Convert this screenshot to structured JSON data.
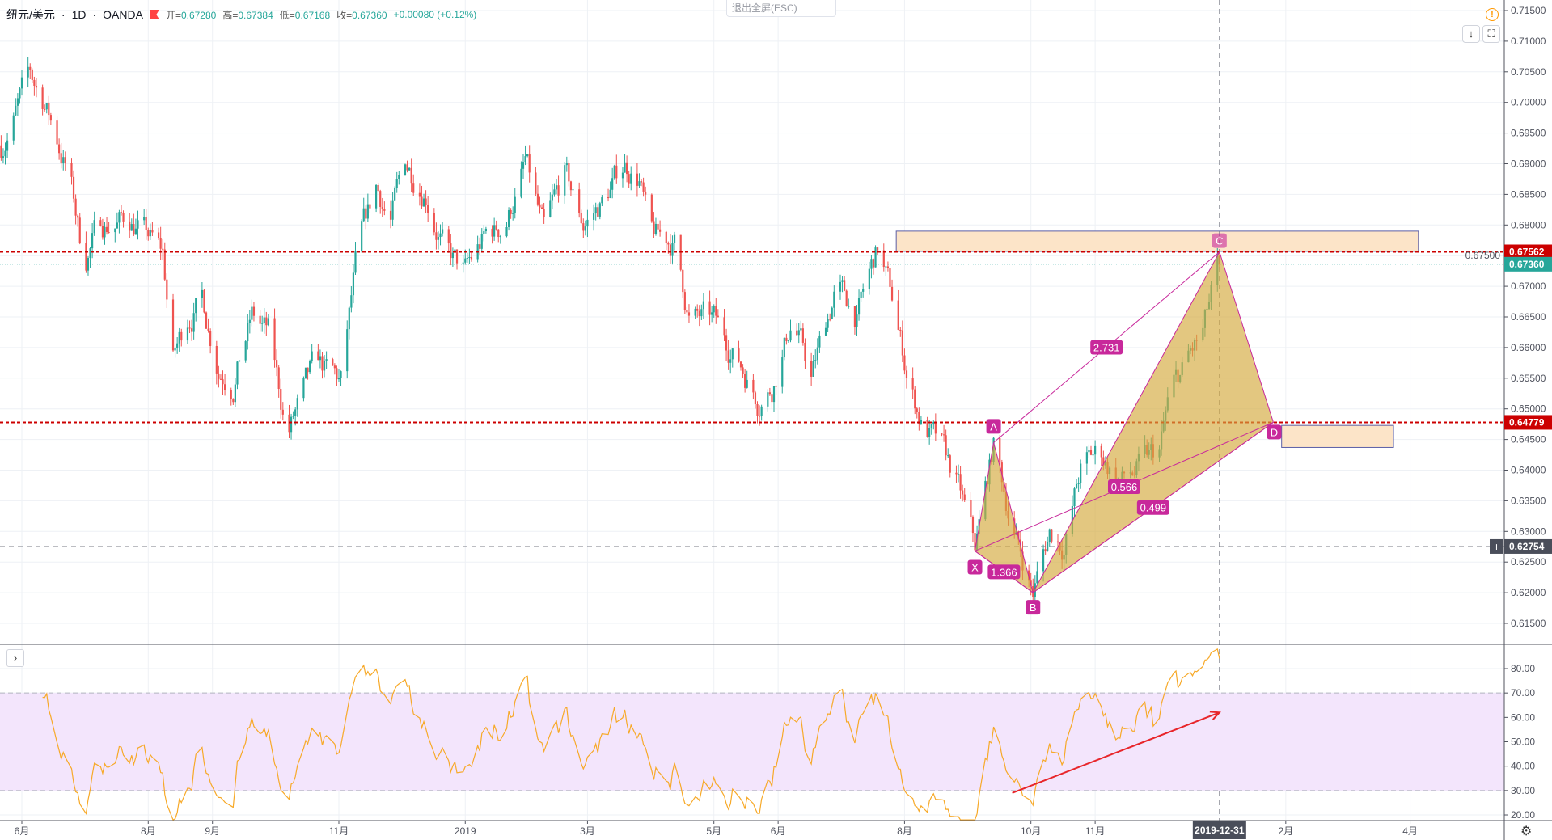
{
  "header": {
    "symbol": "纽元/美元",
    "interval": "1D",
    "exchange": "OANDA",
    "open_label": "开=",
    "open": "0.67280",
    "high_label": "高=",
    "high": "0.67384",
    "low_label": "低=",
    "low": "0.67168",
    "close_label": "收=",
    "close": "0.67360",
    "change": "+0.00080 (+0.12%)",
    "sep": "·"
  },
  "toolbar": {
    "exit_fullscreen": "退出全屏(ESC)",
    "info_icon": "!",
    "download_icon": "↓",
    "fullscreen_icon": "⛶",
    "collapse_icon": "›",
    "settings_icon": "⚙"
  },
  "colors": {
    "up": "#26a69a",
    "down": "#ef5350",
    "level": "#cc0000",
    "pattern_fill": "#d4a93c",
    "pattern_line": "#c8289b",
    "label_bg": "#c8289b",
    "box_fill": "#fce4c8",
    "box_border": "#5b5ea6",
    "rsi_line": "#f7a928",
    "rsi_band": "#f3e5fc",
    "arrow": "#e8252a"
  },
  "chart_data": {
    "type": "candlestick",
    "price_ticks": [
      "0.71500",
      "0.71000",
      "0.70500",
      "0.70000",
      "0.69500",
      "0.69000",
      "0.68500",
      "0.68000",
      "0.67500",
      "0.67000",
      "0.66500",
      "0.66000",
      "0.65500",
      "0.65000",
      "0.64500",
      "0.64000",
      "0.63500",
      "0.63000",
      "0.62500",
      "0.62000",
      "0.61500"
    ],
    "price_range": [
      0.6115,
      0.7165
    ],
    "time_ticks": [
      {
        "label": "6月",
        "date": "2018-06-01"
      },
      {
        "label": "8月",
        "date": "2018-08-01"
      },
      {
        "label": "9月",
        "date": "2018-09-01"
      },
      {
        "label": "11月",
        "date": "2018-11-01"
      },
      {
        "label": "2019",
        "date": "2019-01-01"
      },
      {
        "label": "3月",
        "date": "2019-03-01"
      },
      {
        "label": "5月",
        "date": "2019-05-01"
      },
      {
        "label": "6月",
        "date": "2019-06-01"
      },
      {
        "label": "8月",
        "date": "2019-08-01"
      },
      {
        "label": "10月",
        "date": "2019-10-01"
      },
      {
        "label": "11月",
        "date": "2019-11-01"
      },
      {
        "label": "2月",
        "date": "2020-02-01"
      },
      {
        "label": "4月",
        "date": "2020-04-01"
      }
    ],
    "crosshair": {
      "date": "2019-12-31",
      "date_label": "2019-12-31",
      "price": "0.62754"
    },
    "levels": [
      {
        "price": 0.67562,
        "label": "0.67562",
        "style": "red-dotted"
      },
      {
        "price": 0.64779,
        "label": "0.64779",
        "style": "red-dotted"
      }
    ],
    "last_price": {
      "price": 0.6736,
      "label": "0.67360"
    },
    "price_path": [
      [
        "2018-05-22",
        0.693
      ],
      [
        "2018-06-05",
        0.704
      ],
      [
        "2018-06-12",
        0.7
      ],
      [
        "2018-06-24",
        0.688
      ],
      [
        "2018-07-01",
        0.674
      ],
      [
        "2018-07-08",
        0.68
      ],
      [
        "2018-07-23",
        0.681
      ],
      [
        "2018-08-01",
        0.678
      ],
      [
        "2018-08-08",
        0.675
      ],
      [
        "2018-08-13",
        0.658
      ],
      [
        "2018-08-20",
        0.665
      ],
      [
        "2018-08-27",
        0.668
      ],
      [
        "2018-09-04",
        0.657
      ],
      [
        "2018-09-11",
        0.655
      ],
      [
        "2018-09-20",
        0.665
      ],
      [
        "2018-09-28",
        0.662
      ],
      [
        "2018-10-07",
        0.646
      ],
      [
        "2018-10-12",
        0.65
      ],
      [
        "2018-10-21",
        0.657
      ],
      [
        "2018-11-02",
        0.654
      ],
      [
        "2018-11-10",
        0.675
      ],
      [
        "2018-11-19",
        0.686
      ],
      [
        "2018-11-26",
        0.681
      ],
      [
        "2018-12-03",
        0.69
      ],
      [
        "2018-12-13",
        0.686
      ],
      [
        "2018-12-23",
        0.675
      ],
      [
        "2019-01-01",
        0.672
      ],
      [
        "2019-01-11",
        0.678
      ],
      [
        "2019-01-20",
        0.68
      ],
      [
        "2019-01-30",
        0.69
      ],
      [
        "2019-02-08",
        0.678
      ],
      [
        "2019-02-18",
        0.688
      ],
      [
        "2019-02-27",
        0.68
      ],
      [
        "2019-03-09",
        0.684
      ],
      [
        "2019-03-19",
        0.69
      ],
      [
        "2019-03-26",
        0.688
      ],
      [
        "2019-03-31",
        0.678
      ],
      [
        "2019-04-12",
        0.677
      ],
      [
        "2019-04-19",
        0.665
      ],
      [
        "2019-05-01",
        0.664
      ],
      [
        "2019-05-13",
        0.658
      ],
      [
        "2019-05-22",
        0.652
      ],
      [
        "2019-05-29",
        0.654
      ],
      [
        "2019-06-08",
        0.665
      ],
      [
        "2019-06-17",
        0.655
      ],
      [
        "2019-06-29",
        0.67
      ],
      [
        "2019-07-09",
        0.665
      ],
      [
        "2019-07-19",
        0.676
      ],
      [
        "2019-07-26",
        0.668
      ],
      [
        "2019-08-02",
        0.656
      ],
      [
        "2019-08-09",
        0.648
      ],
      [
        "2019-08-19",
        0.643
      ],
      [
        "2019-08-26",
        0.638
      ],
      [
        "2019-09-04",
        0.627
      ],
      [
        "2019-09-13",
        0.644
      ],
      [
        "2019-09-23",
        0.63
      ],
      [
        "2019-10-02",
        0.62
      ],
      [
        "2019-10-10",
        0.63
      ],
      [
        "2019-10-17",
        0.628
      ],
      [
        "2019-10-25",
        0.64
      ],
      [
        "2019-11-03",
        0.643
      ],
      [
        "2019-11-13",
        0.638
      ],
      [
        "2019-11-22",
        0.64
      ],
      [
        "2019-12-02",
        0.643
      ],
      [
        "2019-12-07",
        0.652
      ],
      [
        "2019-12-16",
        0.658
      ],
      [
        "2019-12-23",
        0.662
      ],
      [
        "2019-12-31",
        0.6736
      ]
    ],
    "harmonic_pattern": {
      "points": [
        {
          "label": "X",
          "date": "2019-09-04",
          "price": 0.6268
        },
        {
          "label": "A",
          "date": "2019-09-13",
          "price": 0.6445
        },
        {
          "label": "B",
          "date": "2019-10-02",
          "price": 0.62
        },
        {
          "label": "C",
          "date": "2019-12-31",
          "price": 0.6756
        },
        {
          "label": "D",
          "date": "2020-01-26",
          "price": 0.6478
        }
      ],
      "ratios": [
        {
          "from": "X",
          "to": "B",
          "label": "1.366"
        },
        {
          "from": "A",
          "to": "C",
          "label": "2.731"
        },
        {
          "from": "B",
          "to": "D",
          "label": "0.499"
        },
        {
          "from": "X",
          "to": "D",
          "label": "0.566"
        }
      ]
    },
    "boxes": [
      {
        "from": "2019-07-28",
        "to": "2020-04-05",
        "top": 0.679,
        "bottom": 0.6757
      },
      {
        "from": "2020-01-30",
        "to": "2020-03-24",
        "top": 0.6473,
        "bottom": 0.6437
      }
    ],
    "rsi": {
      "ticks": [
        "80.00",
        "70.00",
        "60.00",
        "50.00",
        "40.00",
        "30.00",
        "20.00"
      ],
      "range": [
        18,
        88
      ],
      "band": [
        30,
        70
      ],
      "period": 14,
      "arrow": {
        "from": {
          "date": "2019-09-22",
          "value": 29
        },
        "to": {
          "date": "2019-12-31",
          "value": 62
        }
      }
    }
  }
}
